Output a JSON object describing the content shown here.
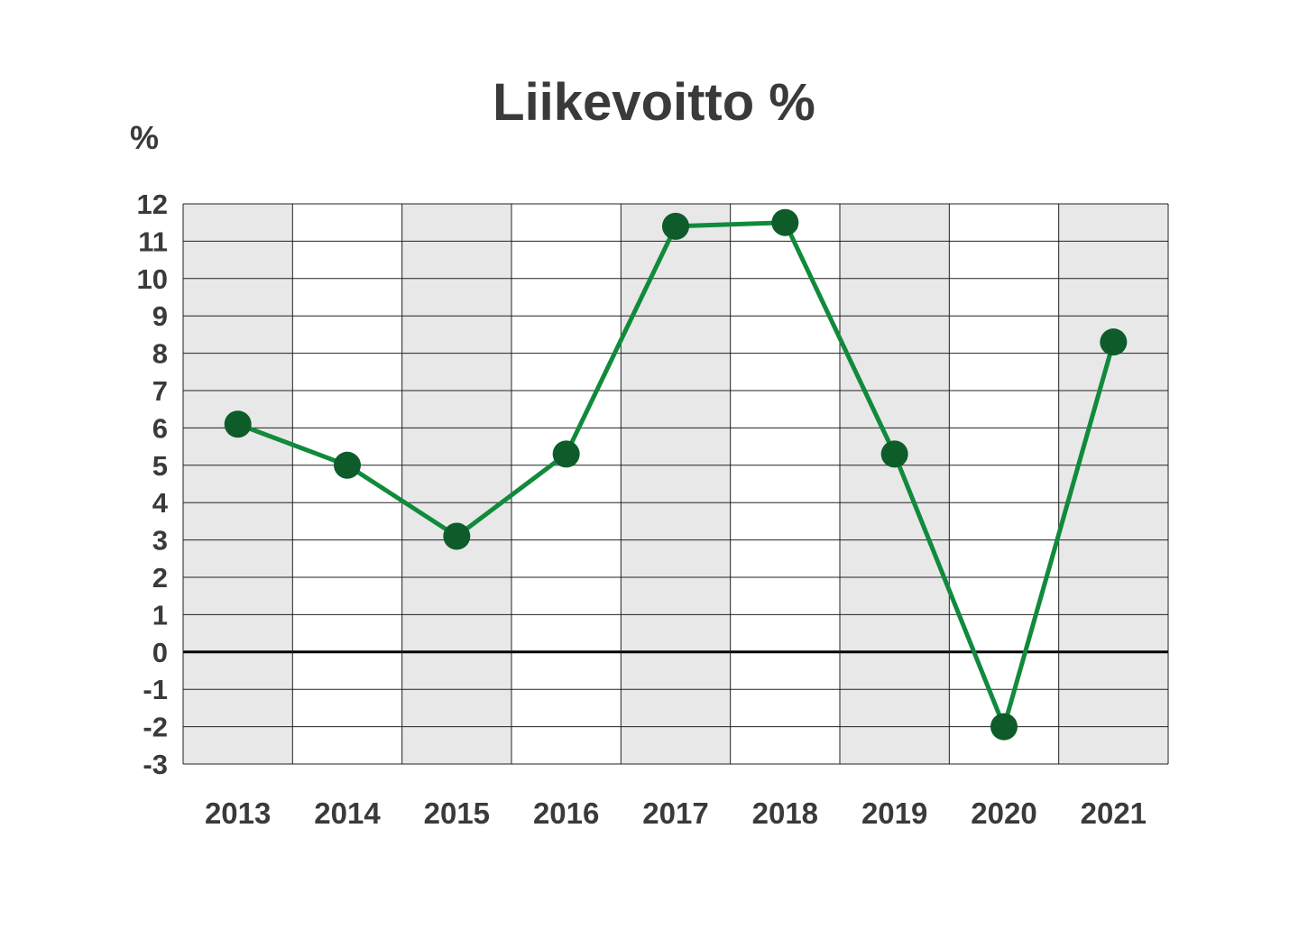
{
  "chart_data": {
    "type": "line",
    "title": "Liikevoitto %",
    "ylabel": "%",
    "xlabel": "",
    "categories": [
      "2013",
      "2014",
      "2015",
      "2016",
      "2017",
      "2018",
      "2019",
      "2020",
      "2021"
    ],
    "series": [
      {
        "values": [
          6.1,
          5.0,
          3.1,
          5.3,
          11.4,
          11.5,
          5.3,
          -2.0,
          8.3
        ]
      }
    ],
    "ylim": [
      -3,
      12
    ],
    "yticks": [
      "12",
      "11",
      "10",
      "9",
      "8",
      "7",
      "6",
      "5",
      "4",
      "3",
      "2",
      "1",
      "0",
      "-1",
      "-2",
      "-3"
    ],
    "grid": true,
    "legend": "none",
    "colors": {
      "line": "#118a3c",
      "marker": "#0d5c2a",
      "band": "#e8e8e8",
      "grid": "#222222",
      "zero_line": "#000000",
      "text": "#3a3a3a"
    }
  }
}
